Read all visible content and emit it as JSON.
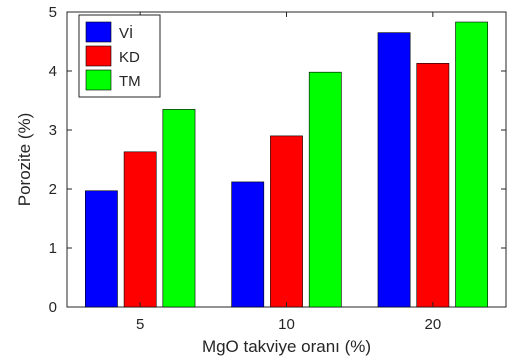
{
  "chart_data": {
    "type": "bar",
    "title": "",
    "xlabel": "MgO takviye oranı (%)",
    "ylabel": "Porozite (%)",
    "categories": [
      "5",
      "10",
      "20"
    ],
    "series": [
      {
        "name": "Vİ",
        "color": "#0000ff",
        "values": [
          1.97,
          2.12,
          4.65
        ]
      },
      {
        "name": "KD",
        "color": "#ff0000",
        "values": [
          2.63,
          2.9,
          4.13
        ]
      },
      {
        "name": "TM",
        "color": "#00ff00",
        "values": [
          3.35,
          3.98,
          4.83
        ]
      }
    ],
    "ylim": [
      0,
      5
    ],
    "yticks": [
      "0",
      "1",
      "2",
      "3",
      "4",
      "5"
    ],
    "grid": false,
    "legend_position": "top-left"
  }
}
